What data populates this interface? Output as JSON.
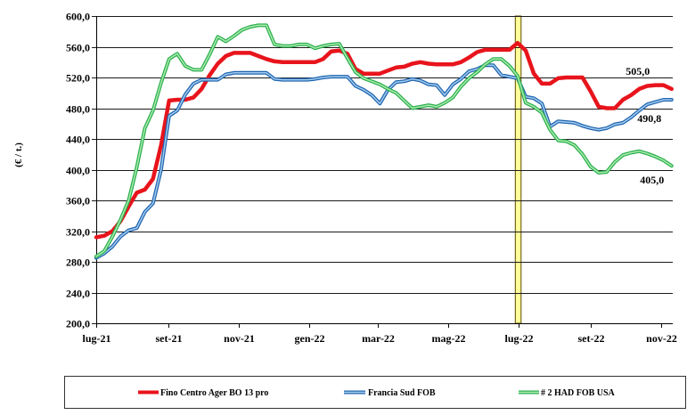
{
  "chart_data": {
    "type": "line",
    "ylabel": "(€ / t.)",
    "ylim": [
      200,
      600
    ],
    "xlim": [
      "2021-07-01",
      "2022-11-11"
    ],
    "grid": true,
    "legend": "bottom",
    "yticks": [
      {
        "value": 200,
        "label": "200,0"
      },
      {
        "value": 240,
        "label": "240,0"
      },
      {
        "value": 280,
        "label": "280,0"
      },
      {
        "value": 320,
        "label": "320,0"
      },
      {
        "value": 360,
        "label": "360,0"
      },
      {
        "value": 400,
        "label": "400,0"
      },
      {
        "value": 440,
        "label": "440,0"
      },
      {
        "value": 480,
        "label": "480,0"
      },
      {
        "value": 520,
        "label": "520,0"
      },
      {
        "value": 560,
        "label": "560,0"
      },
      {
        "value": 600,
        "label": "600,0"
      }
    ],
    "xticks": [
      {
        "date": "2021-07-01",
        "label": "lug-21"
      },
      {
        "date": "2021-09-01",
        "label": "set-21"
      },
      {
        "date": "2021-11-01",
        "label": "nov-21"
      },
      {
        "date": "2022-01-01",
        "label": "gen-22"
      },
      {
        "date": "2022-03-01",
        "label": "mar-22"
      },
      {
        "date": "2022-05-01",
        "label": "mag-22"
      },
      {
        "date": "2022-07-01",
        "label": "lug-22"
      },
      {
        "date": "2022-09-01",
        "label": "set-22"
      },
      {
        "date": "2022-11-01",
        "label": "nov-22"
      }
    ],
    "highlight_band": {
      "from": "2022-06-28",
      "to": "2022-07-03",
      "color": "#FFFF99"
    },
    "x": [
      "2021-07-01",
      "2021-07-08",
      "2021-07-15",
      "2021-07-22",
      "2021-07-29",
      "2021-08-05",
      "2021-08-12",
      "2021-08-19",
      "2021-08-26",
      "2021-09-02",
      "2021-09-09",
      "2021-09-16",
      "2021-09-23",
      "2021-09-30",
      "2021-10-07",
      "2021-10-14",
      "2021-10-21",
      "2021-10-28",
      "2021-11-04",
      "2021-11-11",
      "2021-11-18",
      "2021-11-25",
      "2021-12-02",
      "2021-12-09",
      "2021-12-16",
      "2021-12-23",
      "2021-12-30",
      "2022-01-06",
      "2022-01-13",
      "2022-01-20",
      "2022-01-27",
      "2022-02-03",
      "2022-02-10",
      "2022-02-17",
      "2022-02-24",
      "2022-03-03",
      "2022-03-10",
      "2022-03-17",
      "2022-03-24",
      "2022-03-31",
      "2022-04-07",
      "2022-04-14",
      "2022-04-21",
      "2022-04-28",
      "2022-05-05",
      "2022-05-12",
      "2022-05-19",
      "2022-05-26",
      "2022-06-02",
      "2022-06-09",
      "2022-06-16",
      "2022-06-23",
      "2022-06-30",
      "2022-07-07",
      "2022-07-14",
      "2022-07-21",
      "2022-07-28",
      "2022-08-04",
      "2022-08-11",
      "2022-08-18",
      "2022-08-25",
      "2022-09-01",
      "2022-09-08",
      "2022-09-15",
      "2022-09-22",
      "2022-09-29",
      "2022-10-06",
      "2022-10-13",
      "2022-10-20",
      "2022-10-27",
      "2022-11-03",
      "2022-11-10"
    ],
    "series": [
      {
        "name": "Fino Centro Ager BO 13 pro",
        "color": "#E8141C",
        "values": [
          312,
          314,
          320,
          333,
          352,
          370,
          374,
          388,
          432,
          490,
          491,
          491,
          494,
          505,
          523,
          538,
          548,
          552,
          552,
          552,
          548,
          544,
          541,
          540,
          540,
          540,
          540,
          540,
          544,
          554,
          555,
          551,
          531,
          525,
          525,
          525,
          529,
          533,
          534,
          538,
          540,
          538,
          537,
          537,
          537,
          540,
          546,
          553,
          556,
          556,
          556,
          556,
          565,
          555,
          525,
          512,
          512,
          519,
          520,
          520,
          520,
          502,
          482,
          480,
          480,
          491,
          497,
          505,
          509,
          510,
          510,
          505
        ]
      },
      {
        "name": "Francia Sud FOB",
        "color": "#1F64AD",
        "inner_color": "#A3CDF2",
        "values": [
          285,
          291,
          300,
          313,
          321,
          324,
          345,
          356,
          400,
          470,
          477,
          498,
          512,
          517,
          517,
          517,
          524,
          526,
          526,
          526,
          526,
          526,
          518,
          517,
          517,
          517,
          517,
          518,
          520,
          521,
          521,
          521,
          509,
          504,
          497,
          486,
          504,
          514,
          515,
          518,
          516,
          511,
          510,
          497,
          511,
          518,
          528,
          531,
          536,
          536,
          523,
          521,
          519,
          495,
          493,
          486,
          456,
          463,
          462,
          461,
          457,
          454,
          452,
          454,
          459,
          461,
          468,
          477,
          485,
          488,
          491,
          491
        ]
      },
      {
        "name": "# 2 HAD FOB USA",
        "color": "#2DAE4D",
        "inner_color": "#A8EDB0",
        "values": [
          287,
          294,
          313,
          335,
          360,
          403,
          454,
          477,
          513,
          544,
          551,
          535,
          530,
          530,
          550,
          573,
          567,
          574,
          582,
          586,
          588,
          588,
          563,
          561,
          561,
          563,
          563,
          558,
          561,
          563,
          564,
          545,
          527,
          519,
          515,
          511,
          505,
          500,
          490,
          480,
          482,
          484,
          482,
          487,
          494,
          508,
          519,
          527,
          537,
          544,
          544,
          535,
          522,
          487,
          482,
          474,
          452,
          438,
          437,
          432,
          420,
          404,
          396,
          397,
          410,
          419,
          422,
          424,
          421,
          417,
          412,
          405
        ]
      }
    ],
    "end_labels": [
      {
        "series": 0,
        "text": "505,0"
      },
      {
        "series": 1,
        "text": "490,8"
      },
      {
        "series": 2,
        "text": "405,0"
      }
    ]
  }
}
